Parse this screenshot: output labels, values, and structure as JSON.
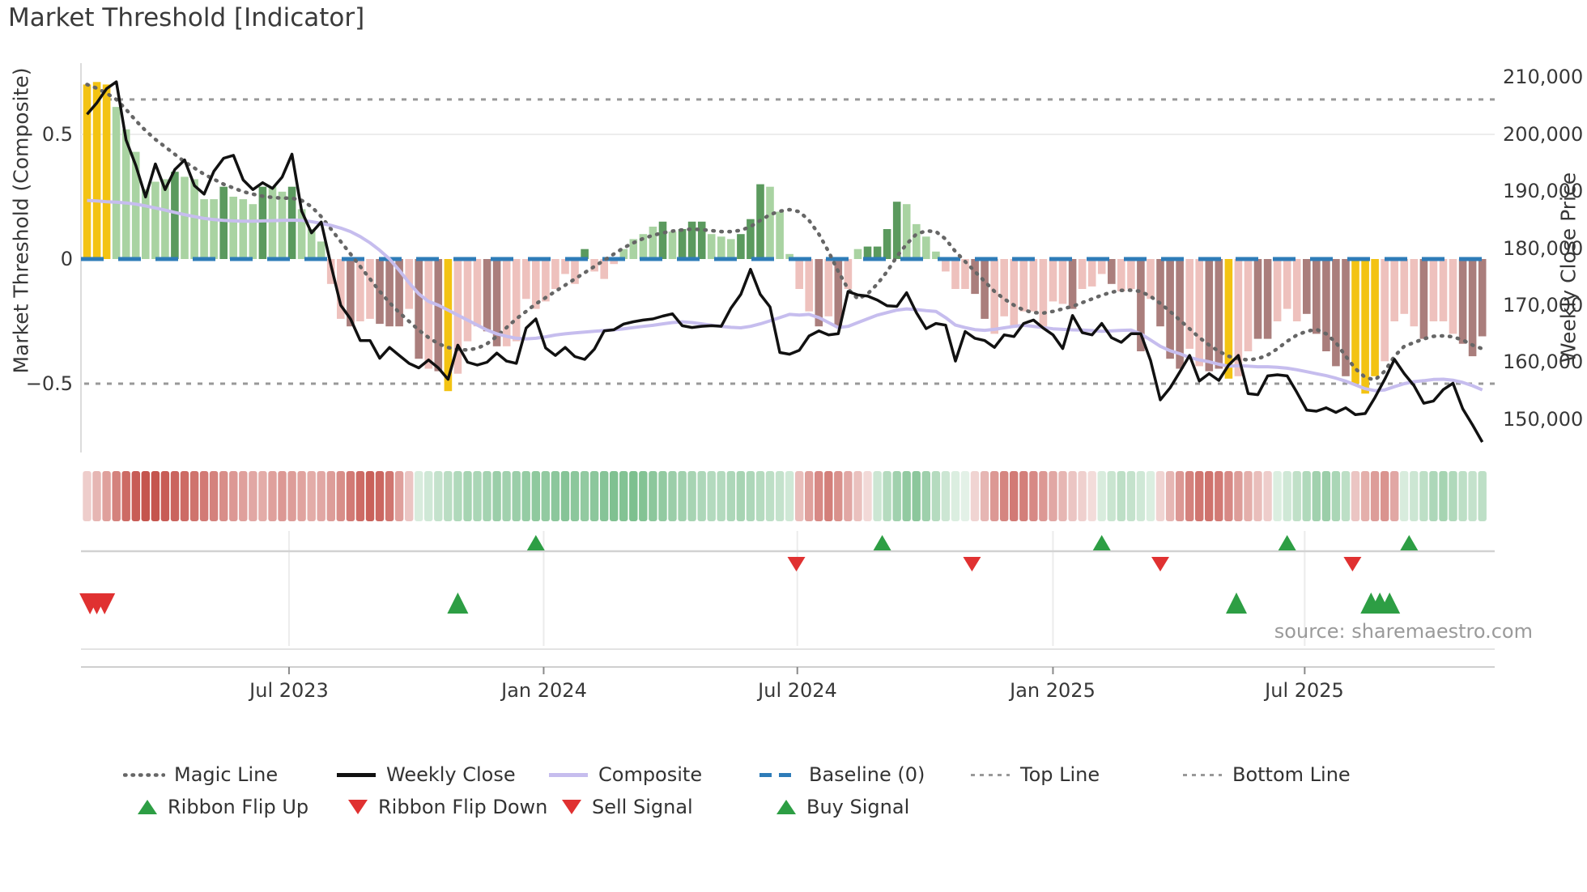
{
  "title": "Market Threshold [Indicator]",
  "source": "source: sharemaestro.com",
  "axes": {
    "left": {
      "label": "Market Threshold (Composite)",
      "ticks": [
        {
          "label": "0.5",
          "value": 0.5
        },
        {
          "label": "0",
          "value": 0
        },
        {
          "label": "−0.5",
          "value": -0.5
        }
      ]
    },
    "right": {
      "label": "Weekly Close Price",
      "ticks": [
        {
          "label": "210,000",
          "value": 210000
        },
        {
          "label": "200,000",
          "value": 200000
        },
        {
          "label": "190,000",
          "value": 190000
        },
        {
          "label": "180,000",
          "value": 180000
        },
        {
          "label": "170,000",
          "value": 170000
        },
        {
          "label": "160,000",
          "value": 160000
        },
        {
          "label": "150,000",
          "value": 150000
        }
      ]
    },
    "x": {
      "ticks": [
        {
          "label": "Jul 2023",
          "week": 20.7
        },
        {
          "label": "Jan 2024",
          "week": 46.8
        },
        {
          "label": "Jul 2024",
          "week": 72.8
        },
        {
          "label": "Jan 2025",
          "week": 99.0
        },
        {
          "label": "Jul 2025",
          "week": 124.8
        }
      ]
    }
  },
  "legend": {
    "row1": [
      {
        "label": "Magic Line",
        "type": "dotted-gray-line"
      },
      {
        "label": "Weekly Close",
        "type": "solid-black-line"
      },
      {
        "label": "Composite",
        "type": "solid-lavender-line"
      },
      {
        "label": "Baseline (0)",
        "type": "dashed-blue-line"
      },
      {
        "label": "Top Line",
        "type": "dashed-gray-line"
      },
      {
        "label": "Bottom Line",
        "type": "dashed-gray-line"
      }
    ],
    "row2": [
      {
        "label": "Ribbon Flip Up",
        "type": "green-up-triangle"
      },
      {
        "label": "Ribbon Flip Down",
        "type": "red-down-triangle"
      },
      {
        "label": "Sell Signal",
        "type": "red-down-triangle"
      },
      {
        "label": "Buy Signal",
        "type": "green-up-triangle"
      }
    ]
  },
  "colors": {
    "bar_palette": {
      "Y": "#f3c313",
      "g": "#a9d3a2",
      "G": "#5b9a5e",
      "P": "#eec1bd",
      "B": "#aa7e7c"
    },
    "ribbon_red": "#c5554e",
    "ribbon_green": "#52ab6a",
    "weekly_close": "#111111",
    "composite": "#c6bdee",
    "magic_line": "#666666",
    "baseline": "#2e7cb8",
    "guide_lines": "#999999",
    "signal_green": "#2d9e44",
    "signal_red": "#e03131"
  },
  "chart_data": {
    "type": "combo",
    "title": "Market Threshold [Indicator]",
    "x_unit": "week",
    "weeks": 144,
    "x_tick_labels": [
      "Jul 2023",
      "Jan 2024",
      "Jul 2024",
      "Jan 2025",
      "Jul 2025"
    ],
    "x_tick_week_positions": [
      20.7,
      46.8,
      72.8,
      99.0,
      124.8
    ],
    "ylim_left": [
      -0.78,
      0.79
    ],
    "ylim_right": [
      144000,
      212500
    ],
    "top_line": 0.64,
    "bottom_line": -0.5,
    "baseline": 0,
    "bars": {
      "name": "Market Threshold (Composite) histogram",
      "colors": "YYYggggggGggggGgggGggGgggPPBPPBBBPBPBYPPPBBPPPPPPPPGPPPggggGgGGGgggGGGgggPPBPBPgGGGGggggPPPBBPPPPPPPPBPPPBPPBPBBBPPBBYPPBBPPPBBBBBYYYPPPPBPPPBBB",
      "values": [
        0.7,
        0.71,
        0.7,
        0.61,
        0.52,
        0.43,
        0.28,
        0.31,
        0.32,
        0.35,
        0.33,
        0.32,
        0.24,
        0.24,
        0.29,
        0.25,
        0.24,
        0.22,
        0.29,
        0.29,
        0.27,
        0.29,
        0.2,
        0.12,
        0.07,
        -0.1,
        -0.24,
        -0.27,
        -0.25,
        -0.24,
        -0.26,
        -0.27,
        -0.27,
        -0.2,
        -0.4,
        -0.44,
        -0.45,
        -0.53,
        -0.46,
        -0.33,
        -0.27,
        -0.29,
        -0.35,
        -0.35,
        -0.33,
        -0.16,
        -0.2,
        -0.17,
        -0.12,
        -0.06,
        -0.1,
        0.04,
        -0.05,
        -0.08,
        -0.02,
        0.04,
        0.08,
        0.1,
        0.13,
        0.15,
        0.11,
        0.12,
        0.15,
        0.15,
        0.1,
        0.09,
        0.08,
        0.1,
        0.16,
        0.3,
        0.29,
        0.19,
        0.02,
        -0.12,
        -0.21,
        -0.27,
        -0.23,
        -0.27,
        -0.12,
        0.04,
        0.05,
        0.05,
        0.12,
        0.23,
        0.22,
        0.14,
        0.09,
        0.03,
        -0.05,
        -0.12,
        -0.12,
        -0.14,
        -0.24,
        -0.3,
        -0.23,
        -0.27,
        -0.21,
        -0.21,
        -0.28,
        -0.17,
        -0.18,
        -0.2,
        -0.12,
        -0.11,
        -0.06,
        -0.1,
        -0.13,
        -0.12,
        -0.37,
        -0.16,
        -0.27,
        -0.4,
        -0.44,
        -0.36,
        -0.43,
        -0.45,
        -0.44,
        -0.48,
        -0.47,
        -0.37,
        -0.32,
        -0.32,
        -0.25,
        -0.2,
        -0.25,
        -0.22,
        -0.3,
        -0.37,
        -0.43,
        -0.47,
        -0.5,
        -0.54,
        -0.47,
        -0.41,
        -0.25,
        -0.22,
        -0.27,
        -0.32,
        -0.25,
        -0.25,
        -0.3,
        -0.34,
        -0.39,
        -0.31
      ]
    },
    "weekly_close_thousands": [
      203.5,
      205.5,
      208.0,
      209.2,
      199.0,
      194.5,
      189.0,
      194.8,
      190.3,
      193.8,
      195.5,
      191.0,
      189.5,
      193.5,
      195.8,
      196.3,
      192.0,
      190.3,
      191.5,
      190.5,
      192.5,
      196.5,
      186.5,
      182.7,
      184.6,
      177.0,
      170.0,
      167.6,
      163.8,
      163.8,
      160.7,
      162.6,
      161.2,
      159.8,
      159.0,
      160.4,
      159.0,
      157.0,
      163.0,
      160.0,
      159.5,
      160.0,
      161.6,
      160.2,
      159.8,
      166.0,
      167.6,
      162.5,
      161.2,
      162.6,
      161.0,
      160.5,
      162.3,
      165.5,
      165.7,
      166.7,
      167.1,
      167.4,
      167.6,
      168.1,
      168.5,
      166.4,
      166.1,
      166.3,
      166.4,
      166.3,
      169.5,
      171.9,
      176.3,
      171.9,
      169.7,
      161.7,
      161.4,
      162.1,
      164.6,
      165.5,
      164.8,
      165.0,
      172.4,
      171.8,
      171.6,
      170.9,
      169.9,
      169.8,
      172.2,
      168.7,
      165.9,
      166.8,
      166.5,
      160.2,
      165.4,
      164.2,
      163.8,
      162.6,
      164.8,
      164.5,
      166.8,
      167.4,
      166.0,
      164.8,
      162.4,
      168.2,
      165.2,
      164.8,
      166.8,
      164.3,
      163.5,
      165.0,
      165.0,
      160.3,
      153.4,
      155.5,
      158.3,
      161.2,
      156.7,
      158.0,
      156.8,
      159.5,
      161.2,
      154.5,
      154.3,
      157.6,
      157.8,
      157.6,
      154.7,
      151.6,
      151.4,
      152.0,
      151.2,
      152.0,
      150.8,
      151.0,
      153.8,
      157.0,
      160.5,
      158.0,
      155.9,
      152.8,
      153.2,
      155.2,
      156.3,
      151.8,
      149.0,
      146.0
    ],
    "composite": [
      0.235,
      0.233,
      0.23,
      0.228,
      0.225,
      0.22,
      0.213,
      0.205,
      0.196,
      0.187,
      0.178,
      0.17,
      0.163,
      0.158,
      0.155,
      0.153,
      0.152,
      0.152,
      0.153,
      0.154,
      0.155,
      0.156,
      0.155,
      0.15,
      0.143,
      0.135,
      0.124,
      0.11,
      0.09,
      0.065,
      0.035,
      0.0,
      -0.045,
      -0.095,
      -0.14,
      -0.17,
      -0.185,
      -0.205,
      -0.225,
      -0.245,
      -0.265,
      -0.285,
      -0.3,
      -0.31,
      -0.318,
      -0.32,
      -0.318,
      -0.312,
      -0.305,
      -0.3,
      -0.296,
      -0.293,
      -0.29,
      -0.287,
      -0.284,
      -0.28,
      -0.275,
      -0.27,
      -0.266,
      -0.26,
      -0.255,
      -0.252,
      -0.255,
      -0.26,
      -0.266,
      -0.27,
      -0.274,
      -0.276,
      -0.27,
      -0.26,
      -0.248,
      -0.235,
      -0.222,
      -0.225,
      -0.222,
      -0.235,
      -0.255,
      -0.275,
      -0.27,
      -0.255,
      -0.24,
      -0.225,
      -0.215,
      -0.205,
      -0.2,
      -0.203,
      -0.207,
      -0.21,
      -0.235,
      -0.265,
      -0.275,
      -0.283,
      -0.286,
      -0.282,
      -0.276,
      -0.27,
      -0.266,
      -0.27,
      -0.275,
      -0.28,
      -0.282,
      -0.284,
      -0.285,
      -0.287,
      -0.29,
      -0.288,
      -0.286,
      -0.285,
      -0.3,
      -0.325,
      -0.35,
      -0.368,
      -0.38,
      -0.395,
      -0.405,
      -0.412,
      -0.422,
      -0.43,
      -0.428,
      -0.43,
      -0.432,
      -0.432,
      -0.434,
      -0.438,
      -0.444,
      -0.452,
      -0.46,
      -0.468,
      -0.478,
      -0.49,
      -0.505,
      -0.52,
      -0.528,
      -0.525,
      -0.512,
      -0.5,
      -0.492,
      -0.488,
      -0.483,
      -0.482,
      -0.486,
      -0.495,
      -0.508,
      -0.525
    ],
    "magic_line": [
      0.7,
      0.685,
      0.665,
      0.64,
      0.6,
      0.555,
      0.515,
      0.48,
      0.45,
      0.42,
      0.39,
      0.365,
      0.34,
      0.32,
      0.3,
      0.285,
      0.27,
      0.26,
      0.252,
      0.247,
      0.244,
      0.244,
      0.235,
      0.21,
      0.17,
      0.12,
      0.07,
      0.02,
      -0.03,
      -0.08,
      -0.13,
      -0.175,
      -0.215,
      -0.25,
      -0.285,
      -0.315,
      -0.34,
      -0.355,
      -0.363,
      -0.365,
      -0.358,
      -0.34,
      -0.31,
      -0.275,
      -0.24,
      -0.21,
      -0.18,
      -0.155,
      -0.13,
      -0.105,
      -0.08,
      -0.055,
      -0.03,
      -0.005,
      0.02,
      0.045,
      0.065,
      0.082,
      0.095,
      0.105,
      0.112,
      0.117,
      0.12,
      0.118,
      0.114,
      0.11,
      0.11,
      0.115,
      0.13,
      0.155,
      0.178,
      0.192,
      0.198,
      0.19,
      0.155,
      0.1,
      0.03,
      -0.05,
      -0.12,
      -0.16,
      -0.14,
      -0.1,
      -0.05,
      0.01,
      0.06,
      0.1,
      0.113,
      0.11,
      0.08,
      0.03,
      -0.01,
      -0.05,
      -0.09,
      -0.13,
      -0.16,
      -0.185,
      -0.205,
      -0.215,
      -0.217,
      -0.21,
      -0.2,
      -0.19,
      -0.175,
      -0.16,
      -0.145,
      -0.133,
      -0.126,
      -0.125,
      -0.13,
      -0.15,
      -0.178,
      -0.21,
      -0.245,
      -0.28,
      -0.315,
      -0.345,
      -0.37,
      -0.39,
      -0.4,
      -0.405,
      -0.4,
      -0.385,
      -0.36,
      -0.33,
      -0.305,
      -0.29,
      -0.282,
      -0.3,
      -0.335,
      -0.39,
      -0.44,
      -0.475,
      -0.485,
      -0.45,
      -0.39,
      -0.35,
      -0.335,
      -0.32,
      -0.31,
      -0.308,
      -0.312,
      -0.325,
      -0.345,
      -0.36
    ],
    "ribbon": [
      -0.2,
      -0.35,
      -0.5,
      -0.7,
      -0.85,
      -0.95,
      -1.0,
      -1.0,
      -0.95,
      -0.9,
      -0.85,
      -0.8,
      -0.75,
      -0.7,
      -0.62,
      -0.55,
      -0.5,
      -0.45,
      -0.42,
      -0.5,
      -0.55,
      -0.52,
      -0.48,
      -0.42,
      -0.45,
      -0.52,
      -0.62,
      -0.75,
      -0.85,
      -0.92,
      -0.88,
      -0.78,
      -0.5,
      -0.25,
      0.12,
      0.18,
      0.25,
      0.32,
      0.38,
      0.45,
      0.42,
      0.46,
      0.52,
      0.48,
      0.52,
      0.56,
      0.6,
      0.58,
      0.62,
      0.66,
      0.62,
      0.58,
      0.62,
      0.66,
      0.7,
      0.68,
      0.72,
      0.68,
      0.62,
      0.58,
      0.52,
      0.48,
      0.44,
      0.4,
      0.36,
      0.36,
      0.4,
      0.44,
      0.4,
      0.35,
      0.3,
      0.25,
      0.18,
      -0.3,
      -0.5,
      -0.65,
      -0.72,
      -0.6,
      -0.45,
      -0.28,
      -0.12,
      0.2,
      0.35,
      0.48,
      0.58,
      0.62,
      0.5,
      0.35,
      0.2,
      0.1,
      0.05,
      -0.15,
      -0.35,
      -0.55,
      -0.68,
      -0.75,
      -0.72,
      -0.65,
      -0.55,
      -0.45,
      -0.35,
      -0.25,
      -0.18,
      -0.1,
      0.12,
      0.22,
      0.3,
      0.25,
      0.18,
      0.1,
      -0.15,
      -0.35,
      -0.55,
      -0.7,
      -0.78,
      -0.8,
      -0.75,
      -0.65,
      -0.52,
      -0.4,
      -0.3,
      -0.2,
      0.1,
      0.18,
      0.28,
      0.38,
      0.48,
      0.52,
      0.42,
      0.3,
      -0.25,
      -0.4,
      -0.52,
      -0.58,
      -0.45,
      0.12,
      0.2,
      0.3,
      0.4,
      0.45,
      0.38,
      0.3,
      0.25,
      0.3
    ],
    "markers": {
      "ribbon_flip_up_weeks": [
        46.0,
        81.5,
        104.0,
        123.0,
        135.5
      ],
      "ribbon_flip_down_weeks": [
        72.7,
        90.7,
        110.0,
        129.7
      ],
      "buy_signal_weeks": [
        38.0,
        117.8,
        131.6,
        132.5,
        133.5
      ],
      "sell_signal_weeks": [
        0.3,
        1.0,
        1.8
      ]
    },
    "legend_position": "bottom",
    "grid": "single light gridline at left 0.5 / right 200,000"
  }
}
